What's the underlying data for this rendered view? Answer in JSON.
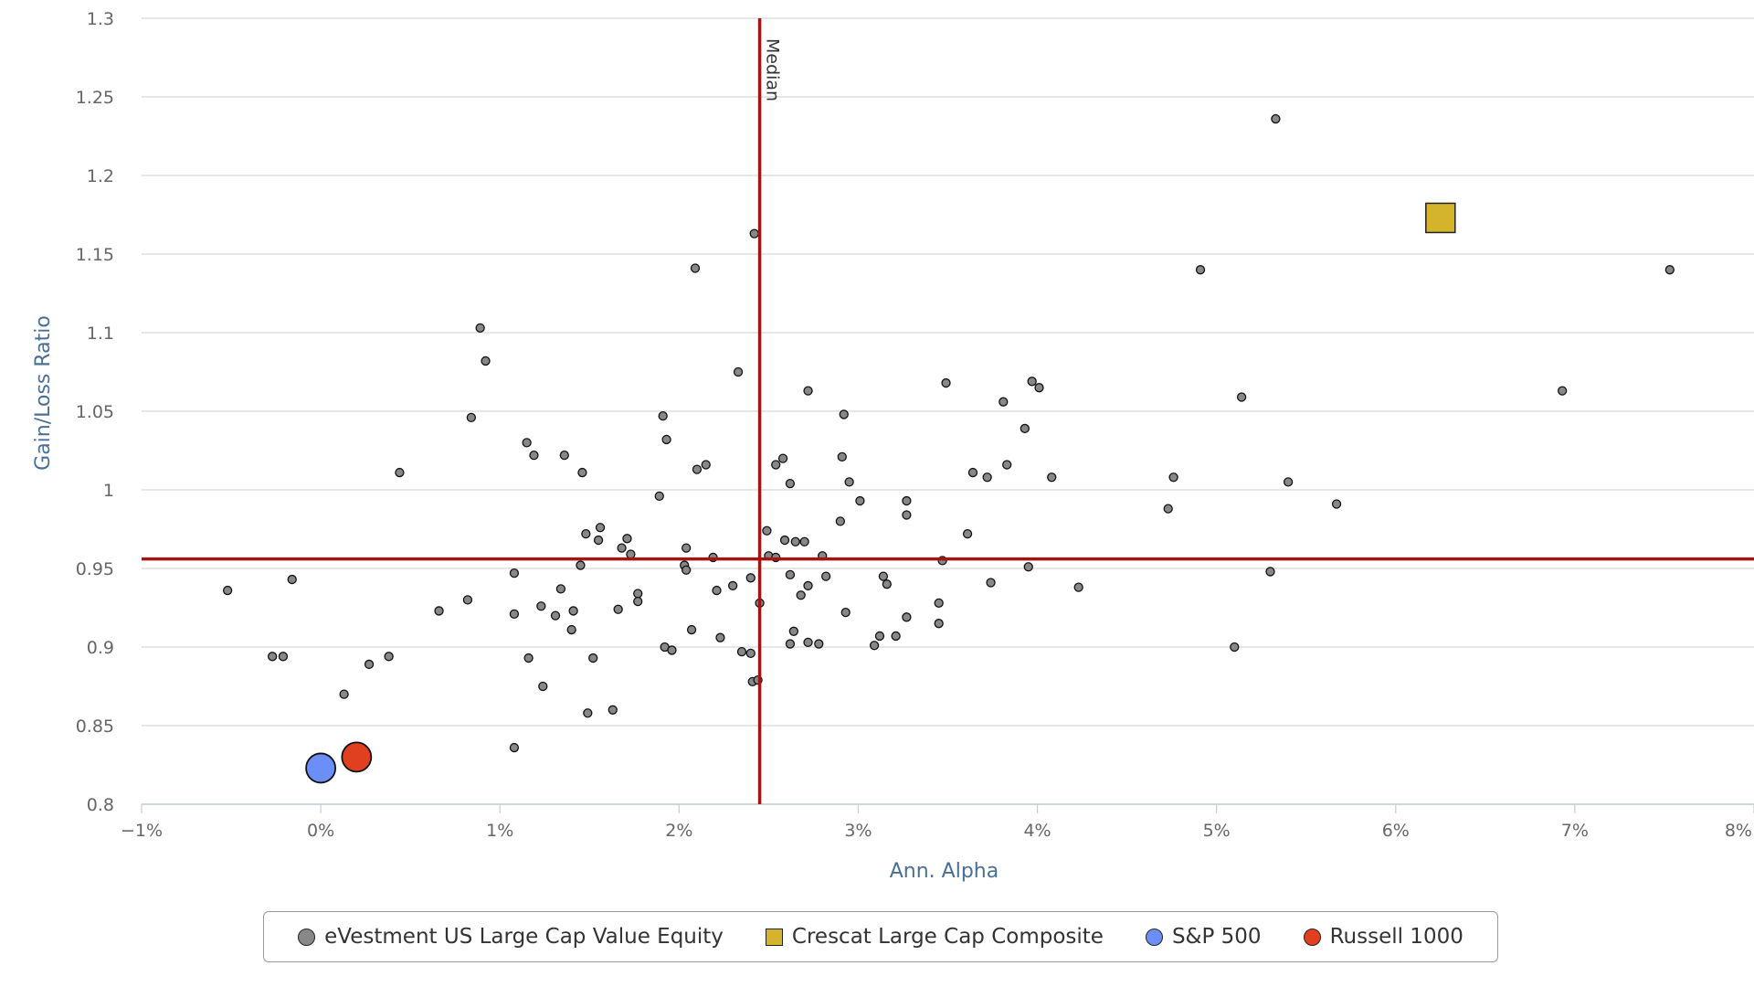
{
  "chart_data": {
    "type": "scatter",
    "title": "",
    "xlabel": "Ann. Alpha",
    "ylabel": "Gain/Loss Ratio",
    "xlim": [
      -1,
      8
    ],
    "ylim": [
      0.8,
      1.3
    ],
    "x_ticks": [
      {
        "value": -1,
        "label": "−1%"
      },
      {
        "value": 0,
        "label": "0%"
      },
      {
        "value": 1,
        "label": "1%"
      },
      {
        "value": 2,
        "label": "2%"
      },
      {
        "value": 3,
        "label": "3%"
      },
      {
        "value": 4,
        "label": "4%"
      },
      {
        "value": 5,
        "label": "5%"
      },
      {
        "value": 6,
        "label": "6%"
      },
      {
        "value": 7,
        "label": "7%"
      },
      {
        "value": 8,
        "label": "8%"
      }
    ],
    "y_ticks": [
      {
        "value": 0.8,
        "label": "0.8"
      },
      {
        "value": 0.85,
        "label": "0.85"
      },
      {
        "value": 0.9,
        "label": "0.9"
      },
      {
        "value": 0.95,
        "label": "0.95"
      },
      {
        "value": 1.0,
        "label": "1"
      },
      {
        "value": 1.05,
        "label": "1.05"
      },
      {
        "value": 1.1,
        "label": "1.1"
      },
      {
        "value": 1.15,
        "label": "1.15"
      },
      {
        "value": 1.2,
        "label": "1.2"
      },
      {
        "value": 1.25,
        "label": "1.25"
      },
      {
        "value": 1.3,
        "label": "1.3"
      }
    ],
    "grid": "horizontal",
    "legend_position": "bottom",
    "median_lines": {
      "x": 2.45,
      "y": 0.956,
      "label": "Median",
      "color": "#a31515"
    },
    "series": [
      {
        "name": "eVestment US Large Cap Value Equity",
        "marker": "circle",
        "color": "#888888",
        "size": "small",
        "points": [
          [
            -0.52,
            0.936
          ],
          [
            -0.27,
            0.894
          ],
          [
            -0.21,
            0.894
          ],
          [
            -0.16,
            0.943
          ],
          [
            0.13,
            0.87
          ],
          [
            0.27,
            0.889
          ],
          [
            0.38,
            0.894
          ],
          [
            0.44,
            1.011
          ],
          [
            0.66,
            0.923
          ],
          [
            0.82,
            0.93
          ],
          [
            0.84,
            1.046
          ],
          [
            0.89,
            1.103
          ],
          [
            0.92,
            1.082
          ],
          [
            1.08,
            0.947
          ],
          [
            1.08,
            0.921
          ],
          [
            1.08,
            0.836
          ],
          [
            1.15,
            1.03
          ],
          [
            1.16,
            0.893
          ],
          [
            1.19,
            1.022
          ],
          [
            1.23,
            0.926
          ],
          [
            1.24,
            0.875
          ],
          [
            1.31,
            0.92
          ],
          [
            1.34,
            0.937
          ],
          [
            1.36,
            1.022
          ],
          [
            1.4,
            0.911
          ],
          [
            1.41,
            0.923
          ],
          [
            1.45,
            0.952
          ],
          [
            1.46,
            1.011
          ],
          [
            1.48,
            0.972
          ],
          [
            1.49,
            0.858
          ],
          [
            1.52,
            0.893
          ],
          [
            1.55,
            0.968
          ],
          [
            1.56,
            0.976
          ],
          [
            1.63,
            0.86
          ],
          [
            1.66,
            0.924
          ],
          [
            1.68,
            0.963
          ],
          [
            1.71,
            0.969
          ],
          [
            1.73,
            0.959
          ],
          [
            1.77,
            0.934
          ],
          [
            1.77,
            0.929
          ],
          [
            1.89,
            0.996
          ],
          [
            1.91,
            1.047
          ],
          [
            1.92,
            0.9
          ],
          [
            1.93,
            1.032
          ],
          [
            1.96,
            0.898
          ],
          [
            2.03,
            0.952
          ],
          [
            2.04,
            0.963
          ],
          [
            2.04,
            0.949
          ],
          [
            2.07,
            0.911
          ],
          [
            2.09,
            1.141
          ],
          [
            2.1,
            1.013
          ],
          [
            2.15,
            1.016
          ],
          [
            2.19,
            0.957
          ],
          [
            2.21,
            0.936
          ],
          [
            2.23,
            0.906
          ],
          [
            2.3,
            0.939
          ],
          [
            2.33,
            1.075
          ],
          [
            2.35,
            0.897
          ],
          [
            2.4,
            0.944
          ],
          [
            2.4,
            0.896
          ],
          [
            2.41,
            0.878
          ],
          [
            2.42,
            1.163
          ],
          [
            2.44,
            0.879
          ],
          [
            2.45,
            0.928
          ],
          [
            2.49,
            0.974
          ],
          [
            2.5,
            0.958
          ],
          [
            2.54,
            0.957
          ],
          [
            2.54,
            1.016
          ],
          [
            2.58,
            1.02
          ],
          [
            2.59,
            0.968
          ],
          [
            2.62,
            0.946
          ],
          [
            2.62,
            1.004
          ],
          [
            2.62,
            0.902
          ],
          [
            2.64,
            0.91
          ],
          [
            2.65,
            0.967
          ],
          [
            2.68,
            0.933
          ],
          [
            2.7,
            0.967
          ],
          [
            2.72,
            1.063
          ],
          [
            2.72,
            0.903
          ],
          [
            2.72,
            0.939
          ],
          [
            2.78,
            0.902
          ],
          [
            2.8,
            0.958
          ],
          [
            2.82,
            0.945
          ],
          [
            2.9,
            0.98
          ],
          [
            2.91,
            1.021
          ],
          [
            2.92,
            1.048
          ],
          [
            2.93,
            0.922
          ],
          [
            2.95,
            1.005
          ],
          [
            3.01,
            0.993
          ],
          [
            3.09,
            0.901
          ],
          [
            3.12,
            0.907
          ],
          [
            3.14,
            0.945
          ],
          [
            3.16,
            0.94
          ],
          [
            3.21,
            0.907
          ],
          [
            3.27,
            0.919
          ],
          [
            3.27,
            0.984
          ],
          [
            3.27,
            0.993
          ],
          [
            3.45,
            0.928
          ],
          [
            3.45,
            0.915
          ],
          [
            3.47,
            0.955
          ],
          [
            3.49,
            1.068
          ],
          [
            3.61,
            0.972
          ],
          [
            3.64,
            1.011
          ],
          [
            3.72,
            1.008
          ],
          [
            3.74,
            0.941
          ],
          [
            3.81,
            1.056
          ],
          [
            3.83,
            1.016
          ],
          [
            3.93,
            1.039
          ],
          [
            3.95,
            0.951
          ],
          [
            3.97,
            1.069
          ],
          [
            4.01,
            1.065
          ],
          [
            4.08,
            1.008
          ],
          [
            4.23,
            0.938
          ],
          [
            4.73,
            0.988
          ],
          [
            4.76,
            1.008
          ],
          [
            4.91,
            1.14
          ],
          [
            5.1,
            0.9
          ],
          [
            5.14,
            1.059
          ],
          [
            5.3,
            0.948
          ],
          [
            5.33,
            1.236
          ],
          [
            5.4,
            1.005
          ],
          [
            5.67,
            0.991
          ],
          [
            6.93,
            1.063
          ],
          [
            7.53,
            1.14
          ]
        ]
      },
      {
        "name": "Crescat Large Cap Composite",
        "marker": "square",
        "color": "#d4b42a",
        "size": "large",
        "points": [
          [
            6.25,
            1.173
          ]
        ]
      },
      {
        "name": "S&P 500",
        "marker": "circle",
        "color": "#6b8ff7",
        "size": "large",
        "points": [
          [
            0.0,
            0.823
          ]
        ]
      },
      {
        "name": "Russell 1000",
        "marker": "circle",
        "color": "#e0401f",
        "size": "large",
        "points": [
          [
            0.2,
            0.83
          ]
        ]
      }
    ]
  }
}
